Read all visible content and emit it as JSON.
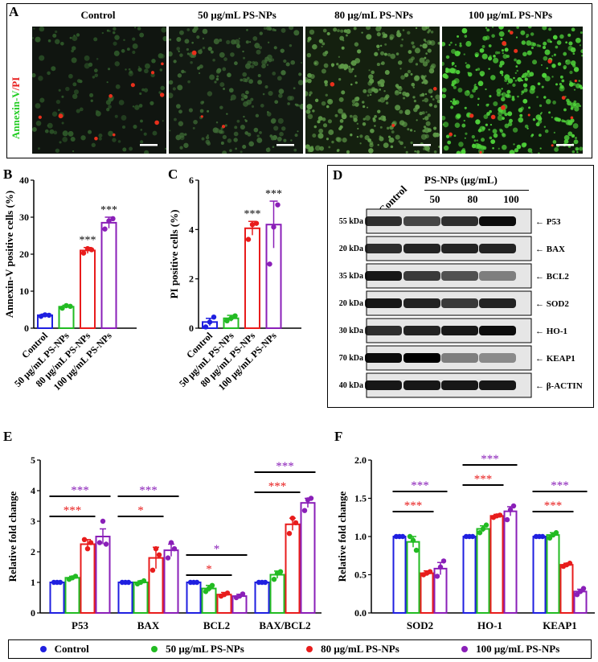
{
  "colors": {
    "control": "#1f1fe0",
    "ps50": "#22bb22",
    "ps80": "#e81c1c",
    "ps100": "#8a1fb8",
    "annexin": "#22cc22",
    "pi": "#e82020"
  },
  "panel_a": {
    "letter": "A",
    "ylabel_annexin": "Annexin-V",
    "ylabel_sep": "/",
    "ylabel_pi": "PI",
    "columns": [
      "Control",
      "50 μg/mL PS-NPs",
      "80 μg/mL PS-NPs",
      "100 μg/mL PS-NPs"
    ]
  },
  "panel_d": {
    "letter": "D",
    "control_label": "Control",
    "group_label": "PS-NPs (μg/mL)",
    "doses": [
      "50",
      "80",
      "100"
    ],
    "rows": [
      {
        "kda": "55 kDa",
        "protein": "P53"
      },
      {
        "kda": "20 kDa",
        "protein": "BAX"
      },
      {
        "kda": "35 kDa",
        "protein": "BCL2"
      },
      {
        "kda": "20 kDa",
        "protein": "SOD2"
      },
      {
        "kda": "30 kDa",
        "protein": "HO-1"
      },
      {
        "kda": "70 kDa",
        "protein": "KEAP1"
      },
      {
        "kda": "40 kDa",
        "protein": "β-ACTIN"
      }
    ]
  },
  "legend": [
    "Control",
    "50 μg/mL PS-NPs",
    "80 μg/mL PS-NPs",
    "100 μg/mL PS-NPs"
  ],
  "chart_data": [
    {
      "panel": "B",
      "type": "bar",
      "ylabel": "Annexin-V positive cells (%)",
      "ylim": [
        0,
        40
      ],
      "yticks": [
        0,
        10,
        20,
        30,
        40
      ],
      "categories": [
        "Control",
        "50 μg/mL PS-NPs",
        "80 μg/mL PS-NPs",
        "100 μg/mL PS-NPs"
      ],
      "values": [
        3.5,
        5.8,
        21.0,
        28.5
      ],
      "errors": [
        0.3,
        0.4,
        0.8,
        1.5
      ],
      "points": [
        [
          3.2,
          3.6,
          3.5
        ],
        [
          5.4,
          6.1,
          5.9
        ],
        [
          20.3,
          21.5,
          21.2
        ],
        [
          26.8,
          29.0,
          29.6
        ]
      ],
      "significance": [
        "",
        "",
        "***",
        "***"
      ]
    },
    {
      "panel": "C",
      "type": "bar",
      "ylabel": "PI positive cells (%)",
      "ylim": [
        0,
        6
      ],
      "yticks": [
        0,
        2,
        4,
        6
      ],
      "categories": [
        "Control",
        "50 μg/mL PS-NPs",
        "80 μg/mL PS-NPs",
        "100 μg/mL PS-NPs"
      ],
      "values": [
        0.25,
        0.4,
        4.05,
        4.2
      ],
      "errors": [
        0.15,
        0.12,
        0.28,
        0.95
      ],
      "points": [
        [
          0.05,
          0.25,
          0.45
        ],
        [
          0.3,
          0.4,
          0.5
        ],
        [
          3.6,
          4.2,
          4.25
        ],
        [
          2.6,
          4.1,
          5.0
        ]
      ],
      "significance": [
        "",
        "",
        "***",
        "***"
      ]
    },
    {
      "panel": "E",
      "type": "bar",
      "ylabel": "Relative fold change",
      "ylim": [
        0,
        5
      ],
      "yticks": [
        0,
        1,
        2,
        3,
        4,
        5
      ],
      "categories": [
        "P53",
        "BAX",
        "BCL2",
        "BAX/BCL2"
      ],
      "series": [
        {
          "name": "Control",
          "values": [
            1.0,
            1.0,
            1.0,
            1.0
          ],
          "errors": [
            0.02,
            0.02,
            0.02,
            0.02
          ],
          "points": [
            [
              1.0,
              1.0,
              1.0
            ],
            [
              1.0,
              1.0,
              1.0
            ],
            [
              1.0,
              1.0,
              1.0
            ],
            [
              1.0,
              1.0,
              1.0
            ]
          ]
        },
        {
          "name": "50 μg/mL PS-NPs",
          "values": [
            1.15,
            1.0,
            0.8,
            1.25
          ],
          "errors": [
            0.05,
            0.05,
            0.1,
            0.12
          ],
          "points": [
            [
              1.1,
              1.15,
              1.2
            ],
            [
              0.95,
              1.0,
              1.05
            ],
            [
              0.7,
              0.8,
              0.9
            ],
            [
              1.1,
              1.3,
              1.35
            ]
          ]
        },
        {
          "name": "80 μg/mL PS-NPs",
          "values": [
            2.25,
            1.8,
            0.6,
            2.9
          ],
          "errors": [
            0.15,
            0.35,
            0.07,
            0.2
          ],
          "points": [
            [
              2.4,
              2.1,
              2.3
            ],
            [
              1.4,
              2.1,
              1.9
            ],
            [
              0.55,
              0.6,
              0.65
            ],
            [
              2.6,
              3.1,
              2.95
            ]
          ]
        },
        {
          "name": "100 μg/mL PS-NPs",
          "values": [
            2.5,
            2.05,
            0.55,
            3.6
          ],
          "errors": [
            0.25,
            0.2,
            0.06,
            0.15
          ],
          "points": [
            [
              2.3,
              3.0,
              2.25
            ],
            [
              1.8,
              2.3,
              2.1
            ],
            [
              0.5,
              0.55,
              0.62
            ],
            [
              3.35,
              3.7,
              3.75
            ]
          ]
        }
      ],
      "significance": [
        [
          {
            "vs": 2,
            "label": "***"
          },
          {
            "vs": 3,
            "label": "***"
          }
        ],
        [
          {
            "vs": 2,
            "label": "*"
          },
          {
            "vs": 3,
            "label": "***"
          }
        ],
        [
          {
            "vs": 2,
            "label": "*"
          },
          {
            "vs": 3,
            "label": "*"
          }
        ],
        [
          {
            "vs": 2,
            "label": "***"
          },
          {
            "vs": 3,
            "label": "***"
          }
        ]
      ]
    },
    {
      "panel": "F",
      "type": "bar",
      "ylabel": "Relative fold change",
      "ylim": [
        0,
        2
      ],
      "yticks": [
        "0.0",
        "0.5",
        "1.0",
        "1.5",
        "2.0"
      ],
      "categories": [
        "SOD2",
        "HO-1",
        "KEAP1"
      ],
      "series": [
        {
          "name": "Control",
          "values": [
            1.0,
            1.0,
            1.0
          ],
          "errors": [
            0.01,
            0.01,
            0.01
          ],
          "points": [
            [
              1.0,
              1.0,
              1.0
            ],
            [
              1.0,
              1.0,
              1.0
            ],
            [
              1.0,
              1.0,
              1.0
            ]
          ]
        },
        {
          "name": "50 μg/mL PS-NPs",
          "values": [
            0.93,
            1.1,
            1.02
          ],
          "errors": [
            0.07,
            0.04,
            0.03
          ],
          "points": [
            [
              1.0,
              0.95,
              0.82
            ],
            [
              1.05,
              1.1,
              1.15
            ],
            [
              0.98,
              1.02,
              1.05
            ]
          ]
        },
        {
          "name": "80 μg/mL PS-NPs",
          "values": [
            0.52,
            1.27,
            0.63
          ],
          "errors": [
            0.03,
            0.02,
            0.02
          ],
          "points": [
            [
              0.5,
              0.52,
              0.54
            ],
            [
              1.25,
              1.27,
              1.28
            ],
            [
              0.61,
              0.63,
              0.65
            ]
          ]
        },
        {
          "name": "100 μg/mL PS-NPs",
          "values": [
            0.58,
            1.33,
            0.28
          ],
          "errors": [
            0.08,
            0.06,
            0.03
          ],
          "points": [
            [
              0.48,
              0.6,
              0.68
            ],
            [
              1.22,
              1.35,
              1.4
            ],
            [
              0.24,
              0.28,
              0.32
            ]
          ]
        }
      ],
      "significance": [
        [
          {
            "vs": 2,
            "label": "***"
          },
          {
            "vs": 3,
            "label": "***"
          }
        ],
        [
          {
            "vs": 2,
            "label": "***"
          },
          {
            "vs": 3,
            "label": "***"
          }
        ],
        [
          {
            "vs": 2,
            "label": "***"
          },
          {
            "vs": 3,
            "label": "***"
          }
        ]
      ]
    }
  ]
}
